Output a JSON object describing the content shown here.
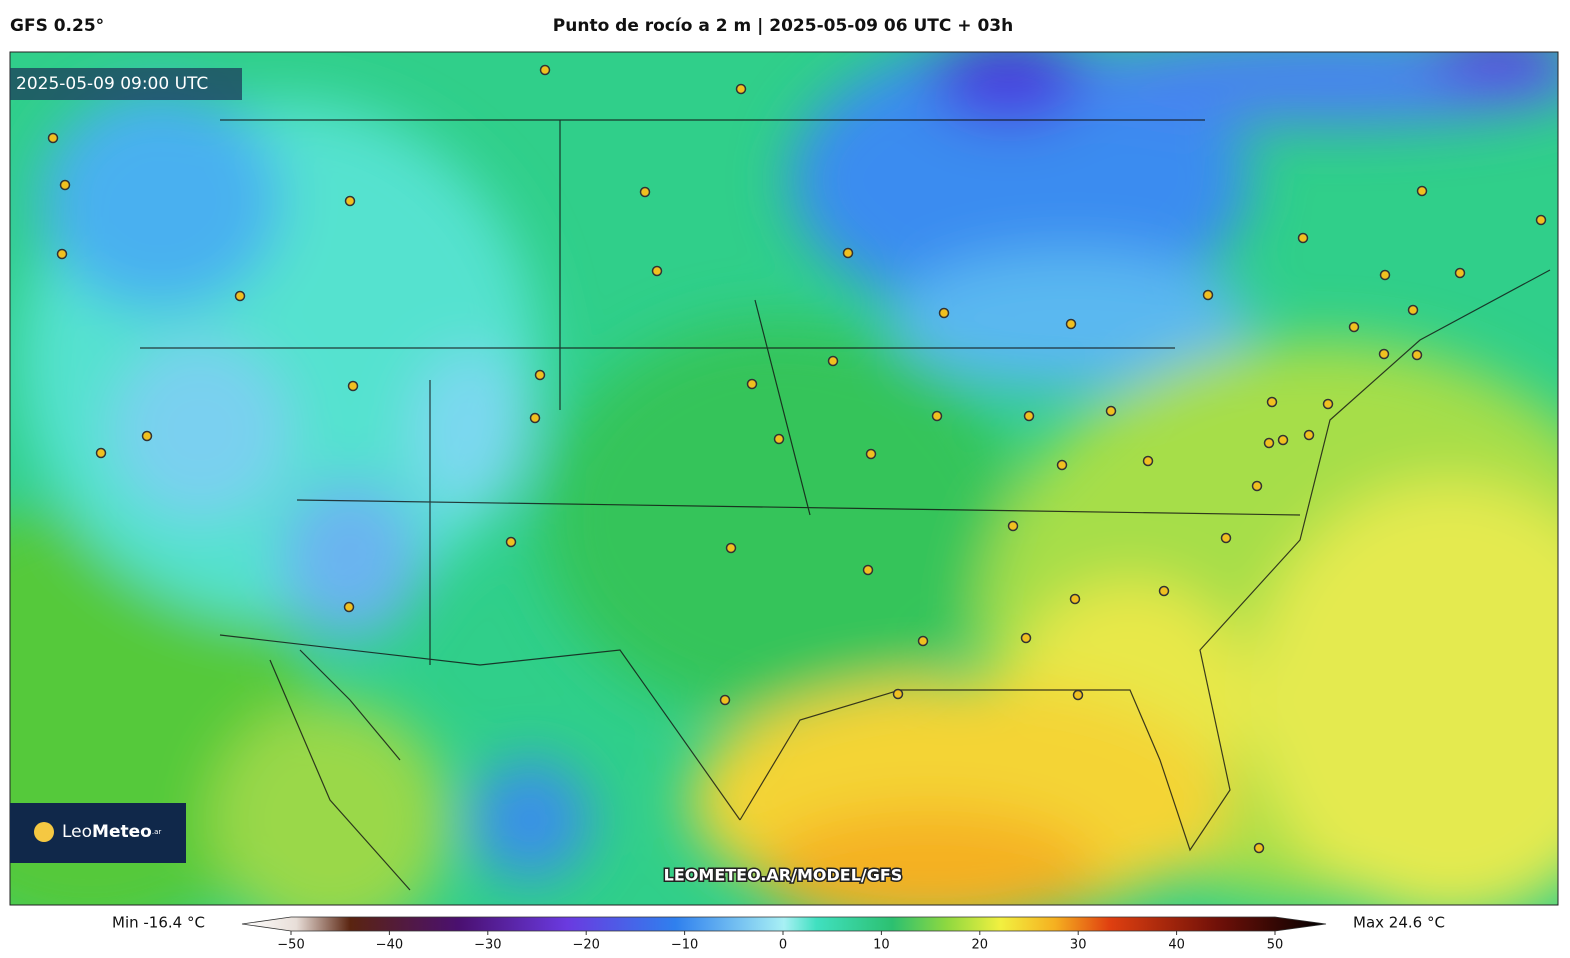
{
  "header": {
    "model": "GFS 0.25°",
    "title": "Punto de rocío a 2 m | 2025-05-09 06 UTC + 03h"
  },
  "map": {
    "valid_time": "2025-05-09 09:00 UTC",
    "watermark": "LEOMETEO.AR/MODEL/GFS",
    "logo_light": "Leo",
    "logo_bold": "Meteo",
    "logo_suffix": ".ar"
  },
  "colorbar": {
    "min_label": "Min -16.4 °C",
    "max_label": "Max 24.6 °C",
    "range": [
      -50,
      50
    ],
    "ticks": [
      {
        "value": -50,
        "label": "−50"
      },
      {
        "value": -40,
        "label": "−40"
      },
      {
        "value": -30,
        "label": "−30"
      },
      {
        "value": -20,
        "label": "−20"
      },
      {
        "value": -10,
        "label": "−10"
      },
      0,
      10,
      20,
      30,
      40,
      50
    ]
  }
}
